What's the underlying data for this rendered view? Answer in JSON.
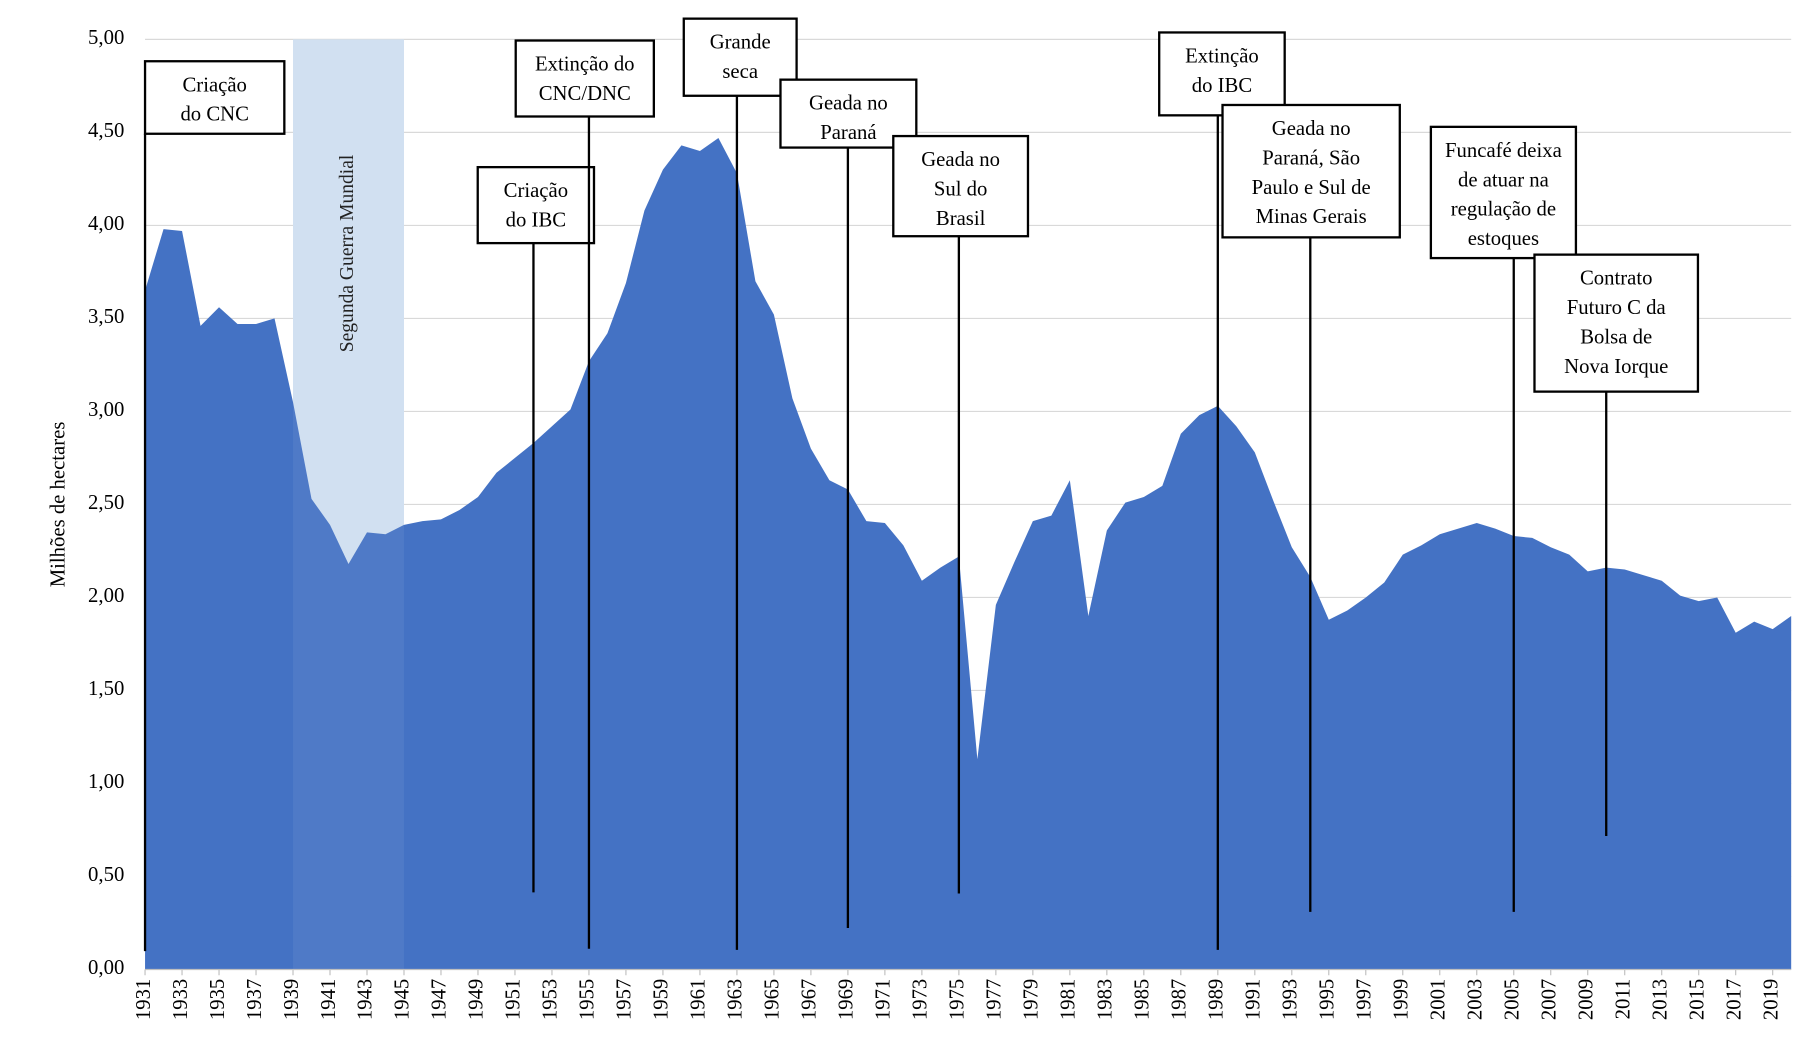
{
  "chart_data": {
    "type": "area",
    "y_axis_label": "Milhões de hectares",
    "color": "#4472c4",
    "grid": true,
    "x": [
      1931,
      1932,
      1933,
      1934,
      1935,
      1936,
      1937,
      1938,
      1939,
      1940,
      1941,
      1942,
      1943,
      1944,
      1945,
      1946,
      1947,
      1948,
      1949,
      1950,
      1951,
      1952,
      1953,
      1954,
      1955,
      1956,
      1957,
      1958,
      1959,
      1960,
      1961,
      1962,
      1963,
      1964,
      1965,
      1966,
      1967,
      1968,
      1969,
      1970,
      1971,
      1972,
      1973,
      1974,
      1975,
      1976,
      1977,
      1978,
      1979,
      1980,
      1981,
      1982,
      1983,
      1984,
      1985,
      1986,
      1987,
      1988,
      1989,
      1990,
      1991,
      1992,
      1993,
      1994,
      1995,
      1996,
      1997,
      1998,
      1999,
      2000,
      2001,
      2002,
      2003,
      2004,
      2005,
      2006,
      2007,
      2008,
      2009,
      2010,
      2011,
      2012,
      2013,
      2014,
      2015,
      2016,
      2017,
      2018,
      2019,
      2020
    ],
    "values": [
      3.65,
      3.98,
      3.97,
      3.46,
      3.56,
      3.47,
      3.47,
      3.5,
      3.05,
      2.53,
      2.39,
      2.18,
      2.35,
      2.34,
      2.39,
      2.41,
      2.42,
      2.47,
      2.54,
      2.67,
      2.75,
      2.83,
      2.92,
      3.01,
      3.27,
      3.42,
      3.69,
      4.08,
      4.3,
      4.43,
      4.4,
      4.47,
      4.28,
      3.7,
      3.52,
      3.07,
      2.8,
      2.63,
      2.58,
      2.41,
      2.4,
      2.28,
      2.09,
      2.16,
      2.22,
      1.13,
      1.96,
      2.19,
      2.41,
      2.44,
      2.63,
      1.9,
      2.36,
      2.51,
      2.54,
      2.6,
      2.88,
      2.98,
      3.03,
      2.92,
      2.78,
      2.52,
      2.27,
      2.11,
      1.88,
      1.93,
      2.0,
      2.08,
      2.23,
      2.28,
      2.34,
      2.37,
      2.4,
      2.37,
      2.33,
      2.32,
      2.27,
      2.23,
      2.14,
      2.16,
      2.15,
      2.12,
      2.09,
      2.01,
      1.98,
      2.0,
      1.81,
      1.87,
      1.83,
      1.9
    ],
    "xlim": [
      1931,
      2020
    ],
    "xticks": [
      1931,
      1933,
      1935,
      1937,
      1939,
      1941,
      1943,
      1945,
      1947,
      1949,
      1951,
      1953,
      1955,
      1957,
      1959,
      1961,
      1963,
      1965,
      1967,
      1969,
      1971,
      1973,
      1975,
      1977,
      1979,
      1981,
      1983,
      1985,
      1987,
      1989,
      1991,
      1993,
      1995,
      1997,
      1999,
      2001,
      2003,
      2005,
      2007,
      2009,
      2011,
      2013,
      2015,
      2017,
      2019
    ],
    "ylim": [
      0,
      5
    ],
    "yticks": [
      {
        "value": 0,
        "label": "0,00"
      },
      {
        "value": 0.5,
        "label": "0,50"
      },
      {
        "value": 1,
        "label": "1,00"
      },
      {
        "value": 1.5,
        "label": "1,50"
      },
      {
        "value": 2,
        "label": "2,00"
      },
      {
        "value": 2.5,
        "label": "2,50"
      },
      {
        "value": 3,
        "label": "3,00"
      },
      {
        "value": 3.5,
        "label": "3,50"
      },
      {
        "value": 4,
        "label": "4,00"
      },
      {
        "value": 4.5,
        "label": "4,50"
      },
      {
        "value": 5,
        "label": "5,00"
      }
    ],
    "shaded_band": {
      "x": [
        1939,
        1945
      ],
      "label": "Segunda Guerra Mundial",
      "color": "#cfdff1"
    },
    "annotations": [
      {
        "x": 1931,
        "lines": [
          "Criação",
          "do CNC"
        ]
      },
      {
        "x": 1952,
        "lines": [
          "Criação",
          "do IBC"
        ]
      },
      {
        "x": 1955,
        "lines": [
          "Extinção do",
          "CNC/DNC"
        ]
      },
      {
        "x": 1963,
        "lines": [
          "Grande",
          "seca"
        ]
      },
      {
        "x": 1969,
        "lines": [
          "Geada no",
          "Paraná"
        ]
      },
      {
        "x": 1975,
        "lines": [
          "Geada no",
          "Sul do",
          "Brasil"
        ]
      },
      {
        "x": 1989,
        "lines": [
          "Extinção",
          "do IBC"
        ]
      },
      {
        "x": 1994,
        "lines": [
          "Geada no",
          "Paraná, São",
          "Paulo e Sul de",
          "Minas Gerais"
        ]
      },
      {
        "x": 2005,
        "lines": [
          "Funcafé deixa",
          "de atuar na",
          "regulação de",
          "estoques"
        ]
      },
      {
        "x": 2010,
        "lines": [
          "Contrato",
          "Futuro C da",
          "Bolsa de",
          "Nova Iorque"
        ]
      }
    ]
  }
}
